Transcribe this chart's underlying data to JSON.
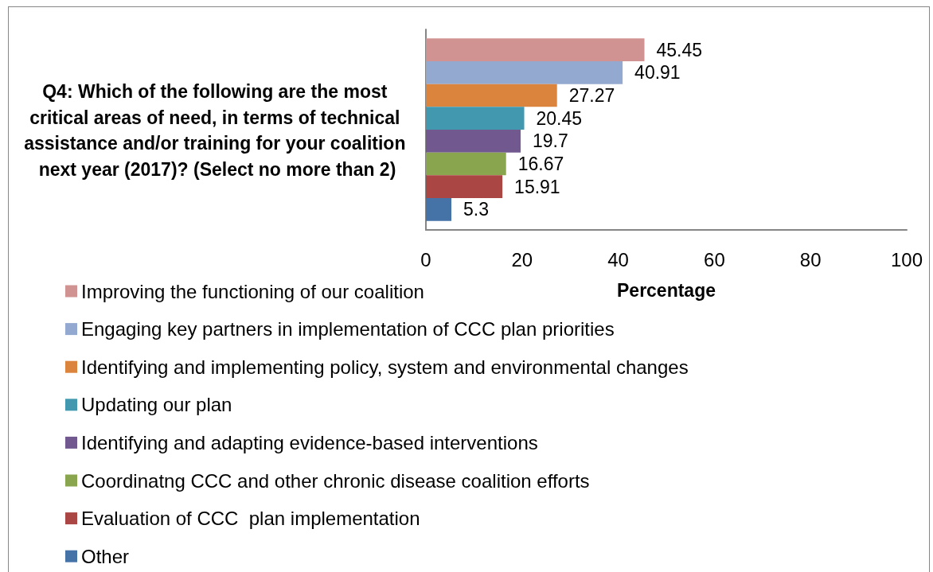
{
  "chart_data": {
    "type": "bar",
    "orientation": "horizontal",
    "title": "Q4: Which of the following are the most critical areas of need, in terms of technical assistance and/or training for your coalition next year (2017)? (Select no more than 2)",
    "xlabel": "Percentage",
    "categories": [
      null
    ],
    "series": [
      {
        "name": "Improving the functioning of our coalition",
        "color": "#d19392",
        "values": [
          45.45
        ]
      },
      {
        "name": "Engaging key partners in implementation of CCC plan priorities",
        "color": "#93a9cf",
        "values": [
          40.91
        ]
      },
      {
        "name": "Identifying and implementing policy, system and environmental changes",
        "color": "#db843d",
        "values": [
          27.27
        ]
      },
      {
        "name": "Updating our plan",
        "color": "#4198af",
        "values": [
          20.45
        ]
      },
      {
        "name": "Identifying and adapting evidence-based interventions",
        "color": "#71588f",
        "values": [
          19.7
        ]
      },
      {
        "name": "Coordinatng CCC and other chronic disease coalition efforts",
        "color": "#89a54e",
        "values": [
          16.67
        ]
      },
      {
        "name": "Evaluation of CCC  plan implementation",
        "color": "#aa4643",
        "values": [
          15.91
        ]
      },
      {
        "name": "Other",
        "color": "#4572a7",
        "values": [
          5.3
        ]
      }
    ],
    "xlim": [
      0,
      100
    ],
    "xticks": [
      0,
      20,
      40,
      60,
      80,
      100
    ],
    "data_labels": true,
    "legend": "bottom left",
    "tick_labels": "x"
  }
}
